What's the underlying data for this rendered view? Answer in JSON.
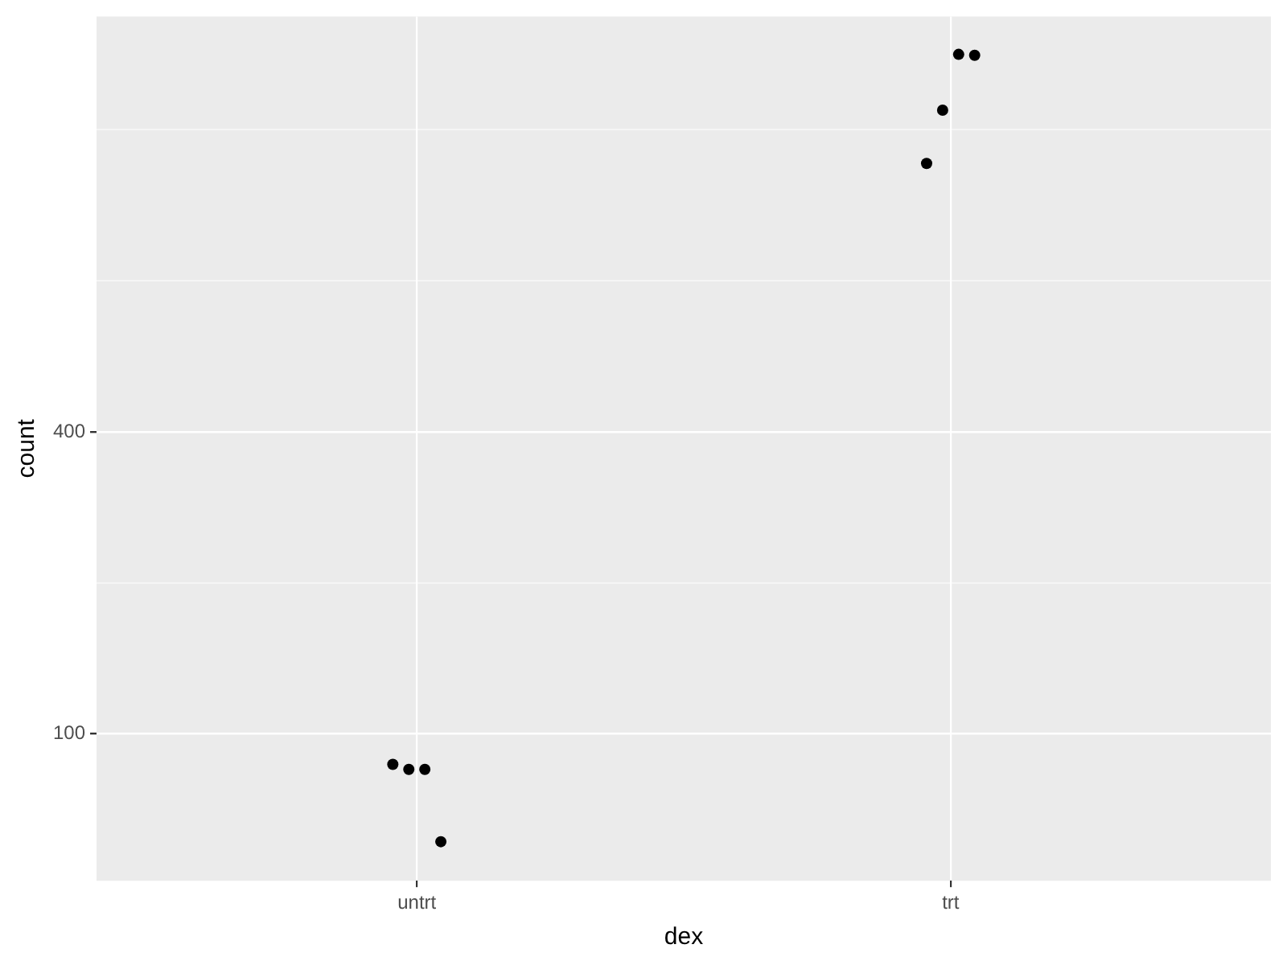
{
  "chart_data": {
    "type": "scatter",
    "xlabel": "dex",
    "ylabel": "count",
    "categories": [
      "untrt",
      "trt"
    ],
    "series": [
      {
        "color": "#000000",
        "x": [
          "untrt",
          "untrt",
          "untrt",
          "untrt",
          "trt",
          "trt",
          "trt",
          "trt"
        ],
        "values": [
          87,
          85,
          85,
          61,
          1370,
          1750,
          2260,
          2250
        ]
      }
    ],
    "log": true,
    "ylim": [
      51,
      2690
    ],
    "yticks": [
      {
        "value": 100,
        "label": "100"
      },
      {
        "value": 200,
        "label": null
      },
      {
        "value": 400,
        "label": "400"
      },
      {
        "value": 800,
        "label": null
      },
      {
        "value": 1600,
        "label": null
      }
    ],
    "grid": true,
    "marker": "circle"
  }
}
